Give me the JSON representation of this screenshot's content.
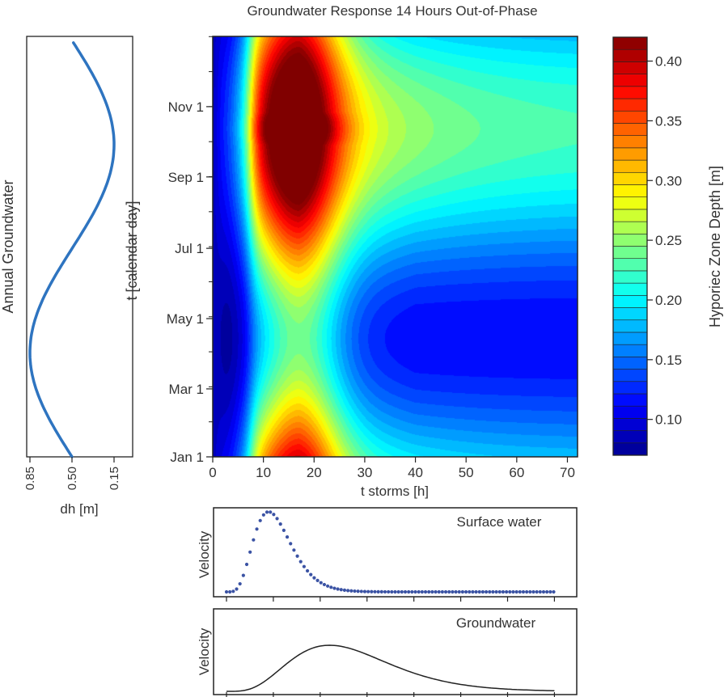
{
  "chart_data": [
    {
      "id": "heatmap",
      "type": "heatmap",
      "title": "Groundwater Response 14 Hours Out-of-Phase",
      "xlabel": "t storms [h]",
      "ylabel": "t [calendar day]",
      "xlim": [
        0,
        72
      ],
      "x_ticks": [
        0,
        10,
        20,
        30,
        40,
        50,
        60,
        70
      ],
      "y_tick_labels": [
        "Jan 1",
        "Mar 1",
        "May 1",
        "Jul 1",
        "Sep 1",
        "Nov 1"
      ],
      "y_tick_days": [
        0,
        59,
        120,
        181,
        243,
        304
      ],
      "ylim_days": [
        0,
        365
      ],
      "colorbar": {
        "label": "Hyporiec Zone Depth [m]",
        "min": 0.07,
        "max": 0.42,
        "ticks": [
          0.1,
          0.15,
          0.2,
          0.25,
          0.3,
          0.35,
          0.4
        ],
        "tick_labels": [
          "0.10",
          "0.15",
          "0.20",
          "0.25",
          "0.30",
          "0.35",
          "0.40"
        ],
        "colors": [
          "#00008f",
          "#0000ff",
          "#00ffff",
          "#ffff00",
          "#ff0000",
          "#800000"
        ]
      },
      "max_depth_location": {
        "t_storm_h": 17,
        "day": 285,
        "depth_m": 0.42
      }
    },
    {
      "id": "annual-groundwater",
      "type": "line",
      "ylabel": "Annual Groundwater",
      "xlabel": "dh [m]",
      "x_tick_labels": [
        "0.85",
        "0.50",
        "0.15"
      ],
      "x_ticks": [
        0.85,
        0.5,
        0.15
      ],
      "x_reversed": true,
      "points_day": [
        0,
        30,
        61,
        91,
        122,
        152,
        183,
        213,
        243,
        274,
        304,
        334,
        365
      ],
      "points_dh": [
        0.5,
        0.7,
        0.83,
        0.85,
        0.78,
        0.62,
        0.44,
        0.29,
        0.18,
        0.15,
        0.2,
        0.32,
        0.5
      ],
      "color": "#2e74c0"
    },
    {
      "id": "surface-water",
      "type": "scatter",
      "label": "Surface water",
      "ylabel": "Velocity",
      "xlim": [
        0,
        72
      ],
      "peak_h": 9,
      "color": "#3b53a4"
    },
    {
      "id": "groundwater",
      "type": "line",
      "label": "Groundwater",
      "ylabel": "Velocity",
      "xlim": [
        0,
        72
      ],
      "peak_h": 22,
      "color": "#222222"
    }
  ]
}
